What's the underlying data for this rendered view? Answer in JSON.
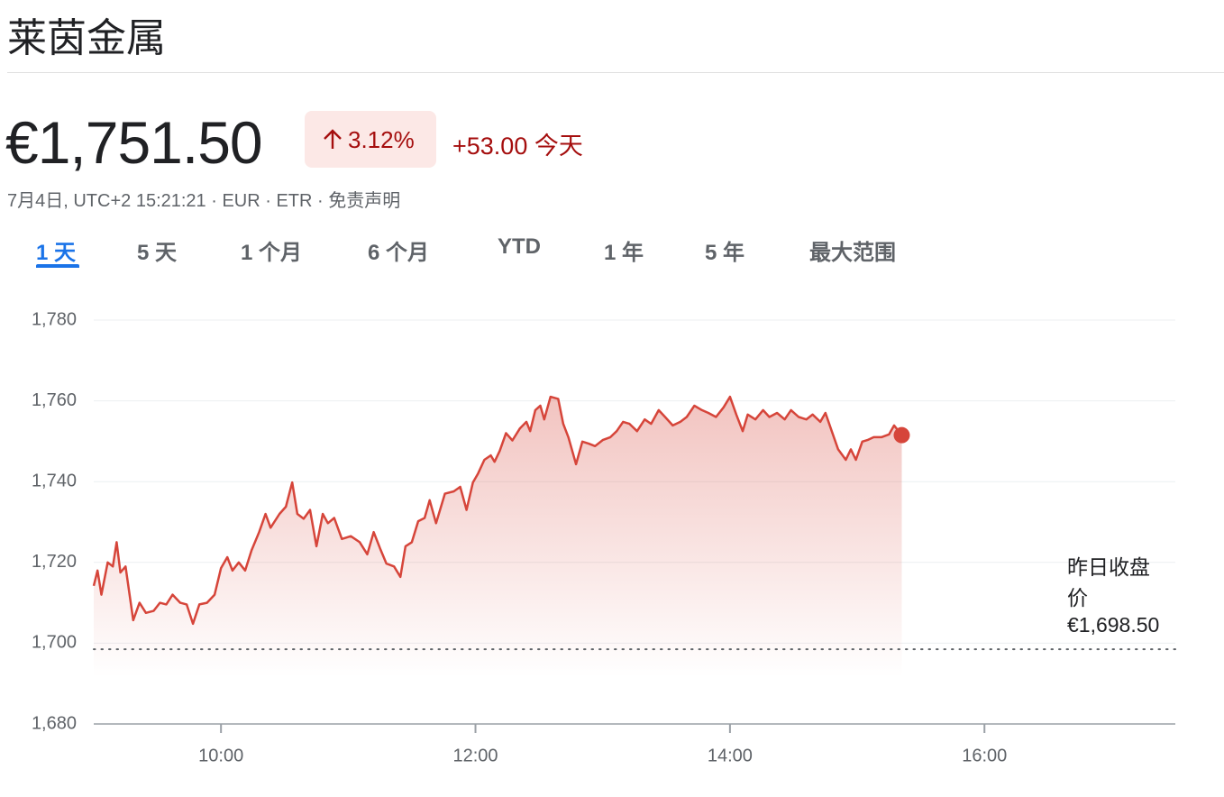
{
  "title": "莱茵金属",
  "price": "€1,751.50",
  "change_pct": "3.12%",
  "change_abs": "+53.00",
  "change_period": "今天",
  "meta": "7月4日, UTC+2 15:21:21 · EUR · ETR · 免责声明",
  "tabs": [
    "1 天",
    "5 天",
    "1 个月",
    "6 个月",
    "YTD",
    "1 年",
    "5 年",
    "最大范围"
  ],
  "chart_data": {
    "type": "line",
    "color": "#d6453a",
    "x": [
      9.0,
      9.03,
      9.06,
      9.11,
      9.15,
      9.18,
      9.21,
      9.25,
      9.31,
      9.36,
      9.41,
      9.47,
      9.52,
      9.57,
      9.62,
      9.68,
      9.73,
      9.78,
      9.83,
      9.89,
      9.95,
      10.0,
      10.05,
      10.09,
      10.14,
      10.19,
      10.24,
      10.3,
      10.35,
      10.39,
      10.46,
      10.51,
      10.56,
      10.6,
      10.65,
      10.7,
      10.75,
      10.8,
      10.84,
      10.89,
      10.95,
      11.02,
      11.09,
      11.15,
      11.2,
      11.25,
      11.3,
      11.36,
      11.41,
      11.45,
      11.5,
      11.55,
      11.6,
      11.64,
      11.69,
      11.76,
      11.83,
      11.88,
      11.93,
      11.98,
      12.02,
      12.07,
      12.12,
      12.15,
      12.19,
      12.24,
      12.29,
      12.35,
      12.4,
      12.43,
      12.47,
      12.51,
      12.54,
      12.59,
      12.65,
      12.69,
      12.73,
      12.79,
      12.84,
      12.89,
      12.94,
      13.0,
      13.06,
      13.11,
      13.16,
      13.21,
      13.27,
      13.33,
      13.38,
      13.44,
      13.49,
      13.55,
      13.61,
      13.66,
      13.72,
      13.78,
      13.83,
      13.89,
      13.95,
      14.0,
      14.05,
      14.1,
      14.14,
      14.2,
      14.26,
      14.31,
      14.37,
      14.43,
      14.48,
      14.54,
      14.6,
      14.65,
      14.71,
      14.75,
      14.8,
      14.85,
      14.91,
      14.95,
      14.99,
      15.04,
      15.08,
      15.13,
      15.19,
      15.25,
      15.29,
      15.35
    ],
    "values": [
      1714.2,
      1718,
      1712,
      1720,
      1719,
      1725,
      1717.5,
      1719,
      1705.7,
      1710,
      1707.5,
      1708,
      1710,
      1709.6,
      1712,
      1710,
      1709.6,
      1704.8,
      1709.6,
      1710,
      1712,
      1718.6,
      1721.3,
      1718,
      1720,
      1718,
      1723,
      1727.5,
      1732,
      1728.6,
      1732,
      1733.8,
      1739.8,
      1732,
      1730.8,
      1733,
      1724,
      1732,
      1729.7,
      1731,
      1725.8,
      1726.5,
      1725,
      1722,
      1727.5,
      1723.5,
      1719.7,
      1719,
      1716.4,
      1724,
      1725,
      1730.2,
      1731,
      1735.4,
      1729.7,
      1737,
      1737.6,
      1738.7,
      1733,
      1739.8,
      1742,
      1745.4,
      1746.5,
      1744.9,
      1747.6,
      1752,
      1750.2,
      1753.2,
      1754.8,
      1752.5,
      1757.7,
      1758.8,
      1755.4,
      1761,
      1760.5,
      1754.3,
      1751,
      1744.3,
      1749.9,
      1749.4,
      1748.8,
      1750.3,
      1751,
      1752.5,
      1754.8,
      1754.3,
      1752.5,
      1755.4,
      1754.3,
      1757.7,
      1756,
      1753.9,
      1754.8,
      1756,
      1758.8,
      1757.7,
      1757,
      1756,
      1758.4,
      1761,
      1756.6,
      1752.5,
      1756.6,
      1755.4,
      1757.7,
      1756,
      1757,
      1755.4,
      1757.7,
      1756,
      1755.4,
      1756.6,
      1754.8,
      1757,
      1752.5,
      1748,
      1745.4,
      1748,
      1745.4,
      1749.9,
      1750.3,
      1751,
      1751,
      1751.7,
      1753.9,
      1751.5
    ],
    "xlim": [
      9,
      17.5
    ],
    "xticks": [
      {
        "value": 10,
        "label": "10:00"
      },
      {
        "value": 12,
        "label": "12:00"
      },
      {
        "value": 14,
        "label": "14:00"
      },
      {
        "value": 16,
        "label": "16:00"
      }
    ],
    "ylim": [
      1680,
      1780
    ],
    "yticks": [
      {
        "value": 1680,
        "label": "1,680"
      },
      {
        "value": 1700,
        "label": "1,700"
      },
      {
        "value": 1720,
        "label": "1,720"
      },
      {
        "value": 1740,
        "label": "1,740"
      },
      {
        "value": 1760,
        "label": "1,760"
      },
      {
        "value": 1780,
        "label": "1,780"
      }
    ],
    "grid": true,
    "reference": {
      "label": "昨日收盘价",
      "value": 1698.5,
      "value_label": "€1,698.50"
    }
  }
}
